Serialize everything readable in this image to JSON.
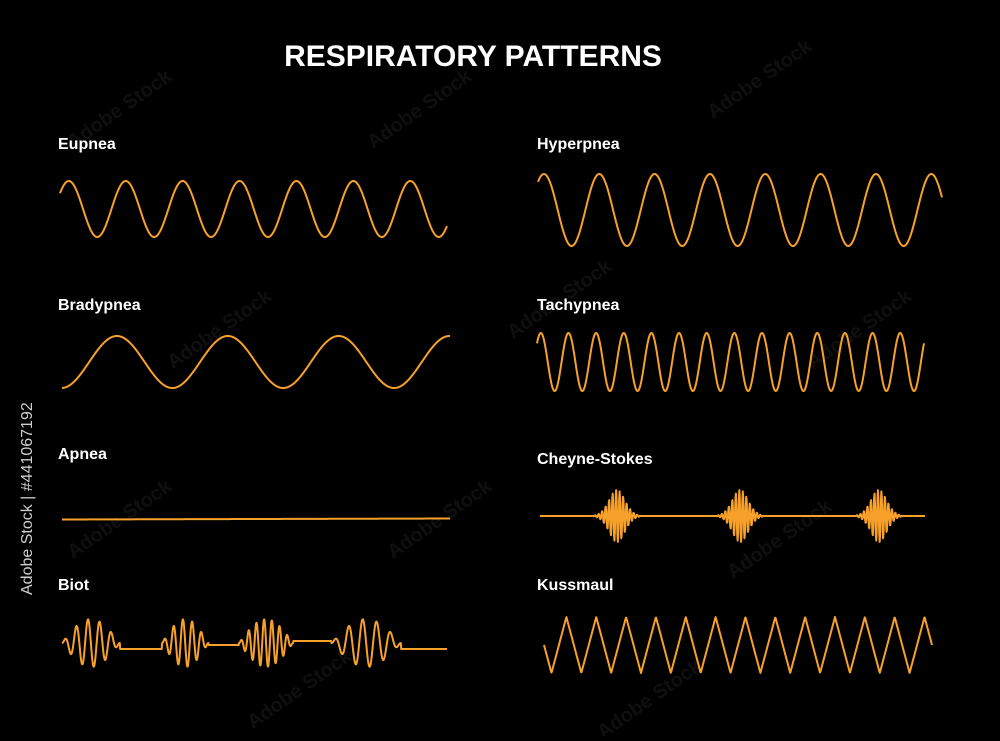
{
  "header": {
    "title": "RESPIRATORY PATTERNS"
  },
  "patterns": [
    {
      "label": "Eupnea"
    },
    {
      "label": "Bradypnea"
    },
    {
      "label": "Apnea"
    },
    {
      "label": "Biot"
    },
    {
      "label": "Hyperpnea"
    },
    {
      "label": "Tachypnea"
    },
    {
      "label": "Cheyne-Stokes"
    },
    {
      "label": "Kussmaul"
    }
  ],
  "watermark": "Adobe Stock",
  "side_label": "Adobe Stock | #441067192"
}
